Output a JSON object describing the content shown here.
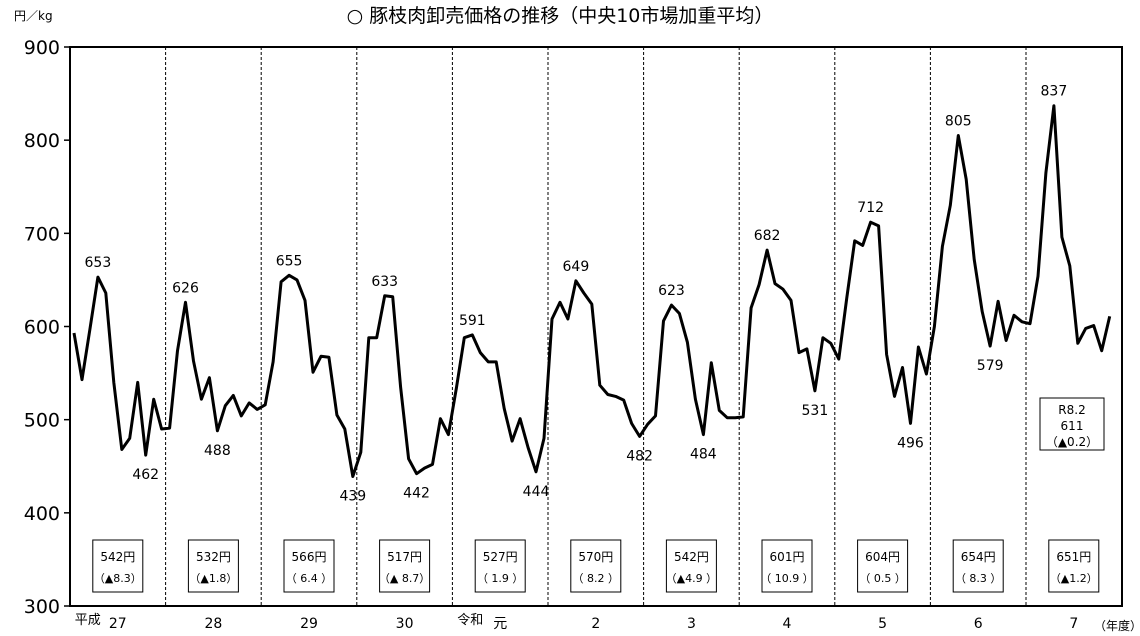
{
  "chart_data": {
    "type": "line",
    "title": "○ 豚枝肉卸売価格の推移（中央10市場加重平均）",
    "ylabel": "円／kg",
    "xlabel": "（年度）",
    "ylim": [
      300,
      900
    ],
    "yticks": [
      "300",
      "400",
      "500",
      "600",
      "700",
      "800",
      "900"
    ],
    "years": [
      {
        "era": "平成",
        "label": "27",
        "avg": "542円",
        "change": "（▲8.3）"
      },
      {
        "era": "",
        "label": "28",
        "avg": "532円",
        "change": "（▲1.8）"
      },
      {
        "era": "",
        "label": "29",
        "avg": "566円",
        "change": "（ 6.4 ）"
      },
      {
        "era": "",
        "label": "30",
        "avg": "517円",
        "change": "（▲ 8.7）"
      },
      {
        "era": "令和",
        "label": "元",
        "avg": "527円",
        "change": "（ 1.9 ）"
      },
      {
        "era": "",
        "label": "2",
        "avg": "570円",
        "change": "（ 8.2 ）"
      },
      {
        "era": "",
        "label": "3",
        "avg": "542円",
        "change": "（▲4.9 ）"
      },
      {
        "era": "",
        "label": "4",
        "avg": "601円",
        "change": "（ 10.9 ）"
      },
      {
        "era": "",
        "label": "5",
        "avg": "604円",
        "change": "（ 0.5 ）"
      },
      {
        "era": "",
        "label": "6",
        "avg": "654円",
        "change": "（ 8.3 ）"
      },
      {
        "era": "",
        "label": "7",
        "avg": "651円",
        "change": "（▲1.2）"
      }
    ],
    "series": [
      {
        "values": [
          593,
          543,
          597,
          653,
          636,
          540,
          468,
          480,
          540,
          462,
          522,
          490,
          491,
          574,
          626,
          563,
          522,
          545,
          488,
          515,
          526,
          504,
          518,
          511,
          516,
          562,
          648,
          655,
          650,
          628,
          551,
          568,
          567,
          505,
          490,
          439,
          465,
          588,
          588,
          633,
          632,
          535,
          458,
          442,
          448,
          452,
          501,
          484,
          534,
          588,
          591,
          572,
          562,
          562,
          512,
          477,
          501,
          470,
          444,
          480,
          608,
          626,
          608,
          649,
          636,
          624,
          537,
          527,
          525,
          521,
          496,
          482,
          495,
          504,
          606,
          623,
          614,
          583,
          522,
          484,
          561,
          510,
          502,
          502,
          503,
          620,
          645,
          682,
          646,
          640,
          628,
          572,
          576,
          531,
          588,
          582,
          565,
          630,
          692,
          687,
          712,
          708,
          570,
          525,
          556,
          496,
          578,
          549,
          600,
          686,
          730,
          805,
          758,
          672,
          616,
          579,
          627,
          585,
          612,
          605,
          603,
          654,
          765,
          837,
          696,
          665,
          582,
          598,
          601,
          574,
          611
        ]
      }
    ],
    "annotations": [
      {
        "index": 3,
        "label": "653"
      },
      {
        "index": 9,
        "label": "462"
      },
      {
        "index": 14,
        "label": "626"
      },
      {
        "index": 18,
        "label": "488"
      },
      {
        "index": 27,
        "label": "655"
      },
      {
        "index": 35,
        "label": "439"
      },
      {
        "index": 39,
        "label": "633"
      },
      {
        "index": 43,
        "label": "442"
      },
      {
        "index": 50,
        "label": "591"
      },
      {
        "index": 58,
        "label": "444"
      },
      {
        "index": 63,
        "label": "649"
      },
      {
        "index": 71,
        "label": "482"
      },
      {
        "index": 75,
        "label": "623"
      },
      {
        "index": 79,
        "label": "484"
      },
      {
        "index": 87,
        "label": "682"
      },
      {
        "index": 93,
        "label": "531"
      },
      {
        "index": 100,
        "label": "712"
      },
      {
        "index": 105,
        "label": "496"
      },
      {
        "index": 111,
        "label": "805"
      },
      {
        "index": 115,
        "label": "579"
      },
      {
        "index": 123,
        "label": "837"
      }
    ],
    "latest": {
      "line1": "R8.2",
      "line2": "611",
      "line3": "（▲0.2）"
    },
    "grid": false,
    "colors": {
      "line": "#000000",
      "axis": "#000000",
      "divider": "#000000"
    }
  }
}
